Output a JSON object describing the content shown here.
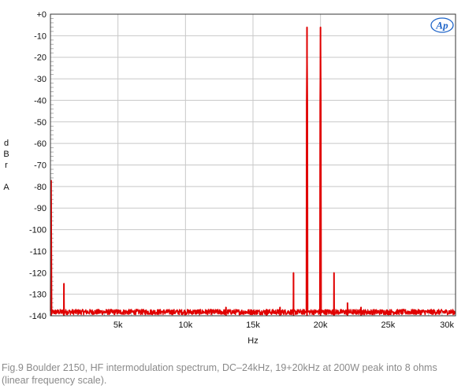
{
  "chart_data": {
    "type": "line",
    "title": "",
    "xlabel": "Hz",
    "ylabel_lines": [
      "d",
      "B",
      "r",
      "A"
    ],
    "xlim": [
      0,
      30000
    ],
    "ylim": [
      -140,
      0
    ],
    "grid": true,
    "ytick_values": [
      0,
      -10,
      -20,
      -30,
      -40,
      -50,
      -60,
      -70,
      -80,
      -90,
      -100,
      -110,
      -120,
      -130,
      -140
    ],
    "ytick_labels": [
      "+0",
      "-10",
      "-20",
      "-30",
      "-40",
      "-50",
      "-60",
      "-70",
      "-80",
      "-90",
      "-100",
      "-110",
      "-120",
      "-130",
      "-140"
    ],
    "xtick_values": [
      5000,
      10000,
      15000,
      20000,
      25000,
      30000
    ],
    "xtick_labels": [
      "5k",
      "10k",
      "15k",
      "20k",
      "25k",
      "30k"
    ],
    "series_color": "#e00000",
    "noise_floor_db": -140,
    "peaks": [
      {
        "hz": 50,
        "db": -77
      },
      {
        "hz": 1000,
        "db": -125
      },
      {
        "hz": 18000,
        "db": -120
      },
      {
        "hz": 19000,
        "db": -6
      },
      {
        "hz": 20000,
        "db": -6
      },
      {
        "hz": 21000,
        "db": -120
      },
      {
        "hz": 22000,
        "db": -134
      },
      {
        "hz": 23000,
        "db": -136
      },
      {
        "hz": 17000,
        "db": -136
      },
      {
        "hz": 16000,
        "db": -137
      },
      {
        "hz": 13000,
        "db": -136
      }
    ]
  },
  "logo": {
    "text": "Ap",
    "color": "#1e64c8"
  },
  "caption": "Fig.9 Boulder 2150, HF intermodulation spectrum, DC–24kHz, 19+20kHz at 200W peak into 8 ohms (linear frequency scale)."
}
